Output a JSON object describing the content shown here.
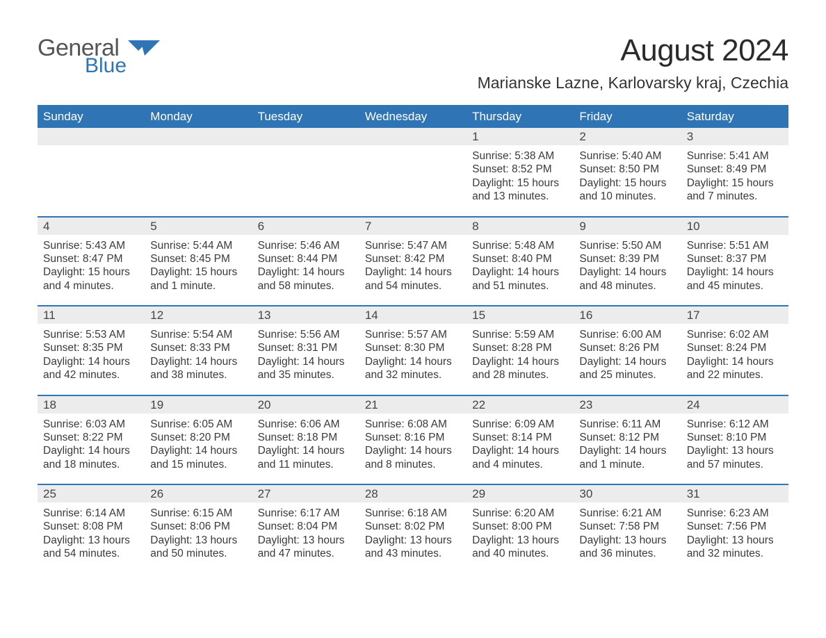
{
  "brand": {
    "general": "General",
    "blue": "Blue",
    "accent_color": "#2f75b5",
    "text_color": "#555555"
  },
  "header": {
    "title": "August 2024",
    "location": "Marianske Lazne, Karlovarsky kraj, Czechia"
  },
  "calendar": {
    "header_bg": "#2f75b5",
    "header_text_color": "#ffffff",
    "daynum_bg": "#ececec",
    "week_border_color": "#2f75b5",
    "daynames": [
      "Sunday",
      "Monday",
      "Tuesday",
      "Wednesday",
      "Thursday",
      "Friday",
      "Saturday"
    ],
    "weeks": [
      [
        {
          "day": null
        },
        {
          "day": null
        },
        {
          "day": null
        },
        {
          "day": null
        },
        {
          "day": "1",
          "sunrise": "Sunrise: 5:38 AM",
          "sunset": "Sunset: 8:52 PM",
          "daylight": "Daylight: 15 hours and 13 minutes."
        },
        {
          "day": "2",
          "sunrise": "Sunrise: 5:40 AM",
          "sunset": "Sunset: 8:50 PM",
          "daylight": "Daylight: 15 hours and 10 minutes."
        },
        {
          "day": "3",
          "sunrise": "Sunrise: 5:41 AM",
          "sunset": "Sunset: 8:49 PM",
          "daylight": "Daylight: 15 hours and 7 minutes."
        }
      ],
      [
        {
          "day": "4",
          "sunrise": "Sunrise: 5:43 AM",
          "sunset": "Sunset: 8:47 PM",
          "daylight": "Daylight: 15 hours and 4 minutes."
        },
        {
          "day": "5",
          "sunrise": "Sunrise: 5:44 AM",
          "sunset": "Sunset: 8:45 PM",
          "daylight": "Daylight: 15 hours and 1 minute."
        },
        {
          "day": "6",
          "sunrise": "Sunrise: 5:46 AM",
          "sunset": "Sunset: 8:44 PM",
          "daylight": "Daylight: 14 hours and 58 minutes."
        },
        {
          "day": "7",
          "sunrise": "Sunrise: 5:47 AM",
          "sunset": "Sunset: 8:42 PM",
          "daylight": "Daylight: 14 hours and 54 minutes."
        },
        {
          "day": "8",
          "sunrise": "Sunrise: 5:48 AM",
          "sunset": "Sunset: 8:40 PM",
          "daylight": "Daylight: 14 hours and 51 minutes."
        },
        {
          "day": "9",
          "sunrise": "Sunrise: 5:50 AM",
          "sunset": "Sunset: 8:39 PM",
          "daylight": "Daylight: 14 hours and 48 minutes."
        },
        {
          "day": "10",
          "sunrise": "Sunrise: 5:51 AM",
          "sunset": "Sunset: 8:37 PM",
          "daylight": "Daylight: 14 hours and 45 minutes."
        }
      ],
      [
        {
          "day": "11",
          "sunrise": "Sunrise: 5:53 AM",
          "sunset": "Sunset: 8:35 PM",
          "daylight": "Daylight: 14 hours and 42 minutes."
        },
        {
          "day": "12",
          "sunrise": "Sunrise: 5:54 AM",
          "sunset": "Sunset: 8:33 PM",
          "daylight": "Daylight: 14 hours and 38 minutes."
        },
        {
          "day": "13",
          "sunrise": "Sunrise: 5:56 AM",
          "sunset": "Sunset: 8:31 PM",
          "daylight": "Daylight: 14 hours and 35 minutes."
        },
        {
          "day": "14",
          "sunrise": "Sunrise: 5:57 AM",
          "sunset": "Sunset: 8:30 PM",
          "daylight": "Daylight: 14 hours and 32 minutes."
        },
        {
          "day": "15",
          "sunrise": "Sunrise: 5:59 AM",
          "sunset": "Sunset: 8:28 PM",
          "daylight": "Daylight: 14 hours and 28 minutes."
        },
        {
          "day": "16",
          "sunrise": "Sunrise: 6:00 AM",
          "sunset": "Sunset: 8:26 PM",
          "daylight": "Daylight: 14 hours and 25 minutes."
        },
        {
          "day": "17",
          "sunrise": "Sunrise: 6:02 AM",
          "sunset": "Sunset: 8:24 PM",
          "daylight": "Daylight: 14 hours and 22 minutes."
        }
      ],
      [
        {
          "day": "18",
          "sunrise": "Sunrise: 6:03 AM",
          "sunset": "Sunset: 8:22 PM",
          "daylight": "Daylight: 14 hours and 18 minutes."
        },
        {
          "day": "19",
          "sunrise": "Sunrise: 6:05 AM",
          "sunset": "Sunset: 8:20 PM",
          "daylight": "Daylight: 14 hours and 15 minutes."
        },
        {
          "day": "20",
          "sunrise": "Sunrise: 6:06 AM",
          "sunset": "Sunset: 8:18 PM",
          "daylight": "Daylight: 14 hours and 11 minutes."
        },
        {
          "day": "21",
          "sunrise": "Sunrise: 6:08 AM",
          "sunset": "Sunset: 8:16 PM",
          "daylight": "Daylight: 14 hours and 8 minutes."
        },
        {
          "day": "22",
          "sunrise": "Sunrise: 6:09 AM",
          "sunset": "Sunset: 8:14 PM",
          "daylight": "Daylight: 14 hours and 4 minutes."
        },
        {
          "day": "23",
          "sunrise": "Sunrise: 6:11 AM",
          "sunset": "Sunset: 8:12 PM",
          "daylight": "Daylight: 14 hours and 1 minute."
        },
        {
          "day": "24",
          "sunrise": "Sunrise: 6:12 AM",
          "sunset": "Sunset: 8:10 PM",
          "daylight": "Daylight: 13 hours and 57 minutes."
        }
      ],
      [
        {
          "day": "25",
          "sunrise": "Sunrise: 6:14 AM",
          "sunset": "Sunset: 8:08 PM",
          "daylight": "Daylight: 13 hours and 54 minutes."
        },
        {
          "day": "26",
          "sunrise": "Sunrise: 6:15 AM",
          "sunset": "Sunset: 8:06 PM",
          "daylight": "Daylight: 13 hours and 50 minutes."
        },
        {
          "day": "27",
          "sunrise": "Sunrise: 6:17 AM",
          "sunset": "Sunset: 8:04 PM",
          "daylight": "Daylight: 13 hours and 47 minutes."
        },
        {
          "day": "28",
          "sunrise": "Sunrise: 6:18 AM",
          "sunset": "Sunset: 8:02 PM",
          "daylight": "Daylight: 13 hours and 43 minutes."
        },
        {
          "day": "29",
          "sunrise": "Sunrise: 6:20 AM",
          "sunset": "Sunset: 8:00 PM",
          "daylight": "Daylight: 13 hours and 40 minutes."
        },
        {
          "day": "30",
          "sunrise": "Sunrise: 6:21 AM",
          "sunset": "Sunset: 7:58 PM",
          "daylight": "Daylight: 13 hours and 36 minutes."
        },
        {
          "day": "31",
          "sunrise": "Sunrise: 6:23 AM",
          "sunset": "Sunset: 7:56 PM",
          "daylight": "Daylight: 13 hours and 32 minutes."
        }
      ]
    ]
  }
}
